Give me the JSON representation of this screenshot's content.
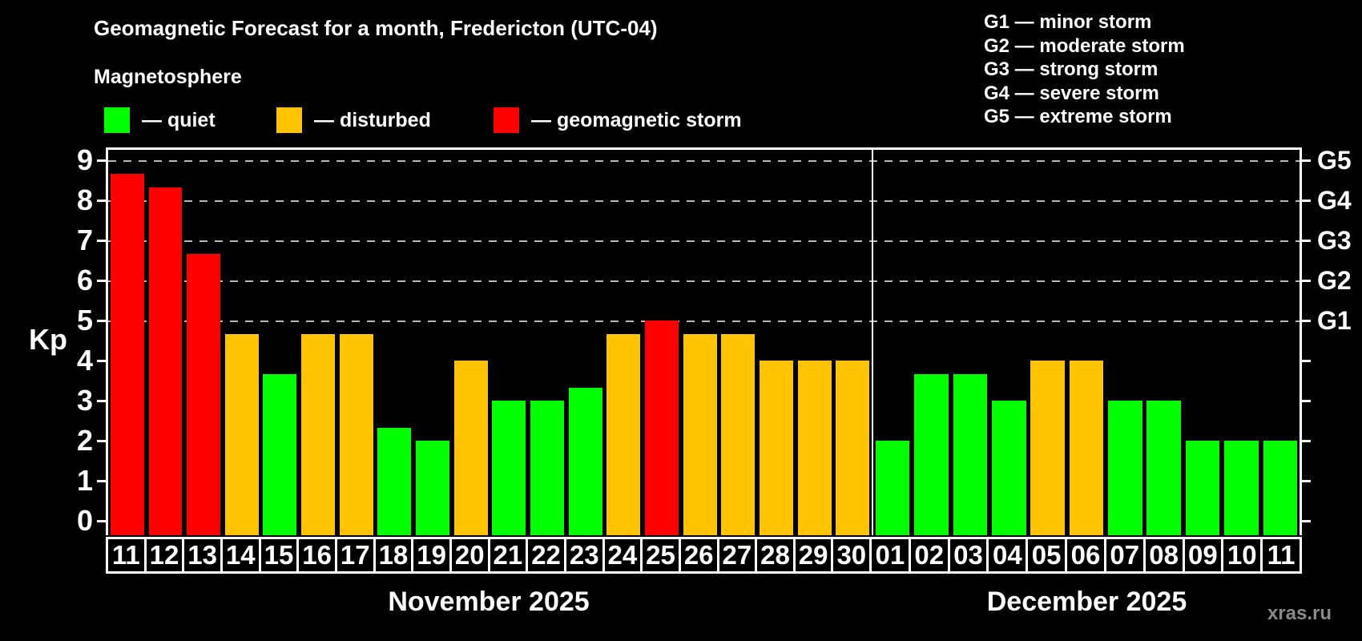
{
  "header": {
    "title": "Geomagnetic Forecast for a month, Fredericton (UTC-04)",
    "subtitle": "Magnetosphere",
    "legend": [
      {
        "id": "quiet",
        "label": "— quiet",
        "color": "#00ff00"
      },
      {
        "id": "disturbed",
        "label": "— disturbed",
        "color": "#ffc300"
      },
      {
        "id": "storm",
        "label": "— geomagnetic storm",
        "color": "#ff0000"
      }
    ],
    "storm_scale": [
      "G1 — minor storm",
      "G2 — moderate storm",
      "G3 — strong storm",
      "G4 — severe storm",
      "G5 — extreme storm"
    ]
  },
  "watermark": "xras.ru",
  "chart_data": {
    "type": "bar",
    "title": "Geomagnetic Forecast for a month, Fredericton (UTC-04)",
    "ylabel": "Kp",
    "ylim": [
      0,
      9.3
    ],
    "y_ticks": [
      0,
      1,
      2,
      3,
      4,
      5,
      6,
      7,
      8,
      9
    ],
    "gridlines_at_kp": [
      5,
      6,
      7,
      8,
      9
    ],
    "grid": "dashed horizontal at G-storm levels only",
    "g_levels": [
      {
        "label": "G1",
        "kp": 5
      },
      {
        "label": "G2",
        "kp": 6
      },
      {
        "label": "G3",
        "kp": 7
      },
      {
        "label": "G4",
        "kp": 8
      },
      {
        "label": "G5",
        "kp": 9
      }
    ],
    "status_colors": {
      "quiet": "#00ff00",
      "disturbed": "#ffc300",
      "storm": "#ff0000"
    },
    "months": [
      {
        "label": "November 2025",
        "days": [
          {
            "day": "11",
            "kp": 8.67,
            "status": "storm"
          },
          {
            "day": "12",
            "kp": 8.33,
            "status": "storm"
          },
          {
            "day": "13",
            "kp": 6.67,
            "status": "storm"
          },
          {
            "day": "14",
            "kp": 4.67,
            "status": "disturbed"
          },
          {
            "day": "15",
            "kp": 3.67,
            "status": "quiet"
          },
          {
            "day": "16",
            "kp": 4.67,
            "status": "disturbed"
          },
          {
            "day": "17",
            "kp": 4.67,
            "status": "disturbed"
          },
          {
            "day": "18",
            "kp": 2.33,
            "status": "quiet"
          },
          {
            "day": "19",
            "kp": 2,
            "status": "quiet"
          },
          {
            "day": "20",
            "kp": 4,
            "status": "disturbed"
          },
          {
            "day": "21",
            "kp": 3,
            "status": "quiet"
          },
          {
            "day": "22",
            "kp": 3,
            "status": "quiet"
          },
          {
            "day": "23",
            "kp": 3.33,
            "status": "quiet"
          },
          {
            "day": "24",
            "kp": 4.67,
            "status": "disturbed"
          },
          {
            "day": "25",
            "kp": 5,
            "status": "storm"
          },
          {
            "day": "26",
            "kp": 4.67,
            "status": "disturbed"
          },
          {
            "day": "27",
            "kp": 4.67,
            "status": "disturbed"
          },
          {
            "day": "28",
            "kp": 4,
            "status": "disturbed"
          },
          {
            "day": "29",
            "kp": 4,
            "status": "disturbed"
          },
          {
            "day": "30",
            "kp": 4,
            "status": "disturbed"
          }
        ]
      },
      {
        "label": "December 2025",
        "days": [
          {
            "day": "01",
            "kp": 2,
            "status": "quiet"
          },
          {
            "day": "02",
            "kp": 3.67,
            "status": "quiet"
          },
          {
            "day": "03",
            "kp": 3.67,
            "status": "quiet"
          },
          {
            "day": "04",
            "kp": 3,
            "status": "quiet"
          },
          {
            "day": "05",
            "kp": 4,
            "status": "disturbed"
          },
          {
            "day": "06",
            "kp": 4,
            "status": "disturbed"
          },
          {
            "day": "07",
            "kp": 3,
            "status": "quiet"
          },
          {
            "day": "08",
            "kp": 3,
            "status": "quiet"
          },
          {
            "day": "09",
            "kp": 2,
            "status": "quiet"
          },
          {
            "day": "10",
            "kp": 2,
            "status": "quiet"
          },
          {
            "day": "11",
            "kp": 2,
            "status": "quiet"
          }
        ]
      }
    ]
  }
}
